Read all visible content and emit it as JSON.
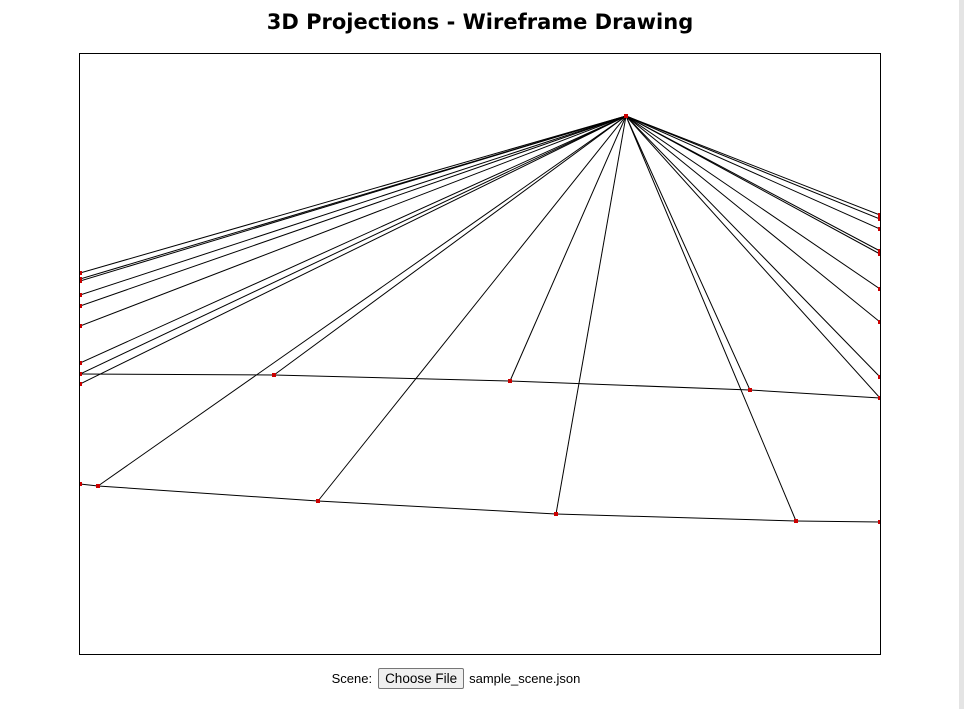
{
  "page": {
    "title": "3D Projections - Wireframe Drawing"
  },
  "scene": {
    "label": "Scene:",
    "choose_button": "Choose File",
    "file_name": "sample_scene.json"
  },
  "colors": {
    "edge": "#000000",
    "vertex": "#cc0000"
  }
}
